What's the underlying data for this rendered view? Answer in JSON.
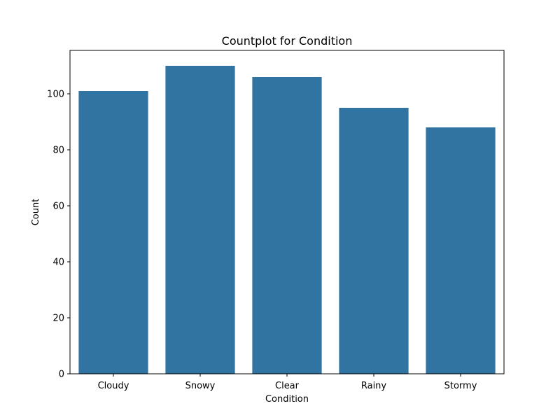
{
  "chart_data": {
    "type": "bar",
    "title": "Countplot for Condition",
    "xlabel": "Condition",
    "ylabel": "Count",
    "categories": [
      "Cloudy",
      "Snowy",
      "Clear",
      "Rainy",
      "Stormy"
    ],
    "values": [
      101,
      110,
      106,
      95,
      88
    ],
    "ylim": [
      0,
      115.5
    ],
    "yticks": [
      0,
      20,
      40,
      60,
      80,
      100
    ],
    "grid": false,
    "legend": "none",
    "bar_color": "#3274a1"
  }
}
